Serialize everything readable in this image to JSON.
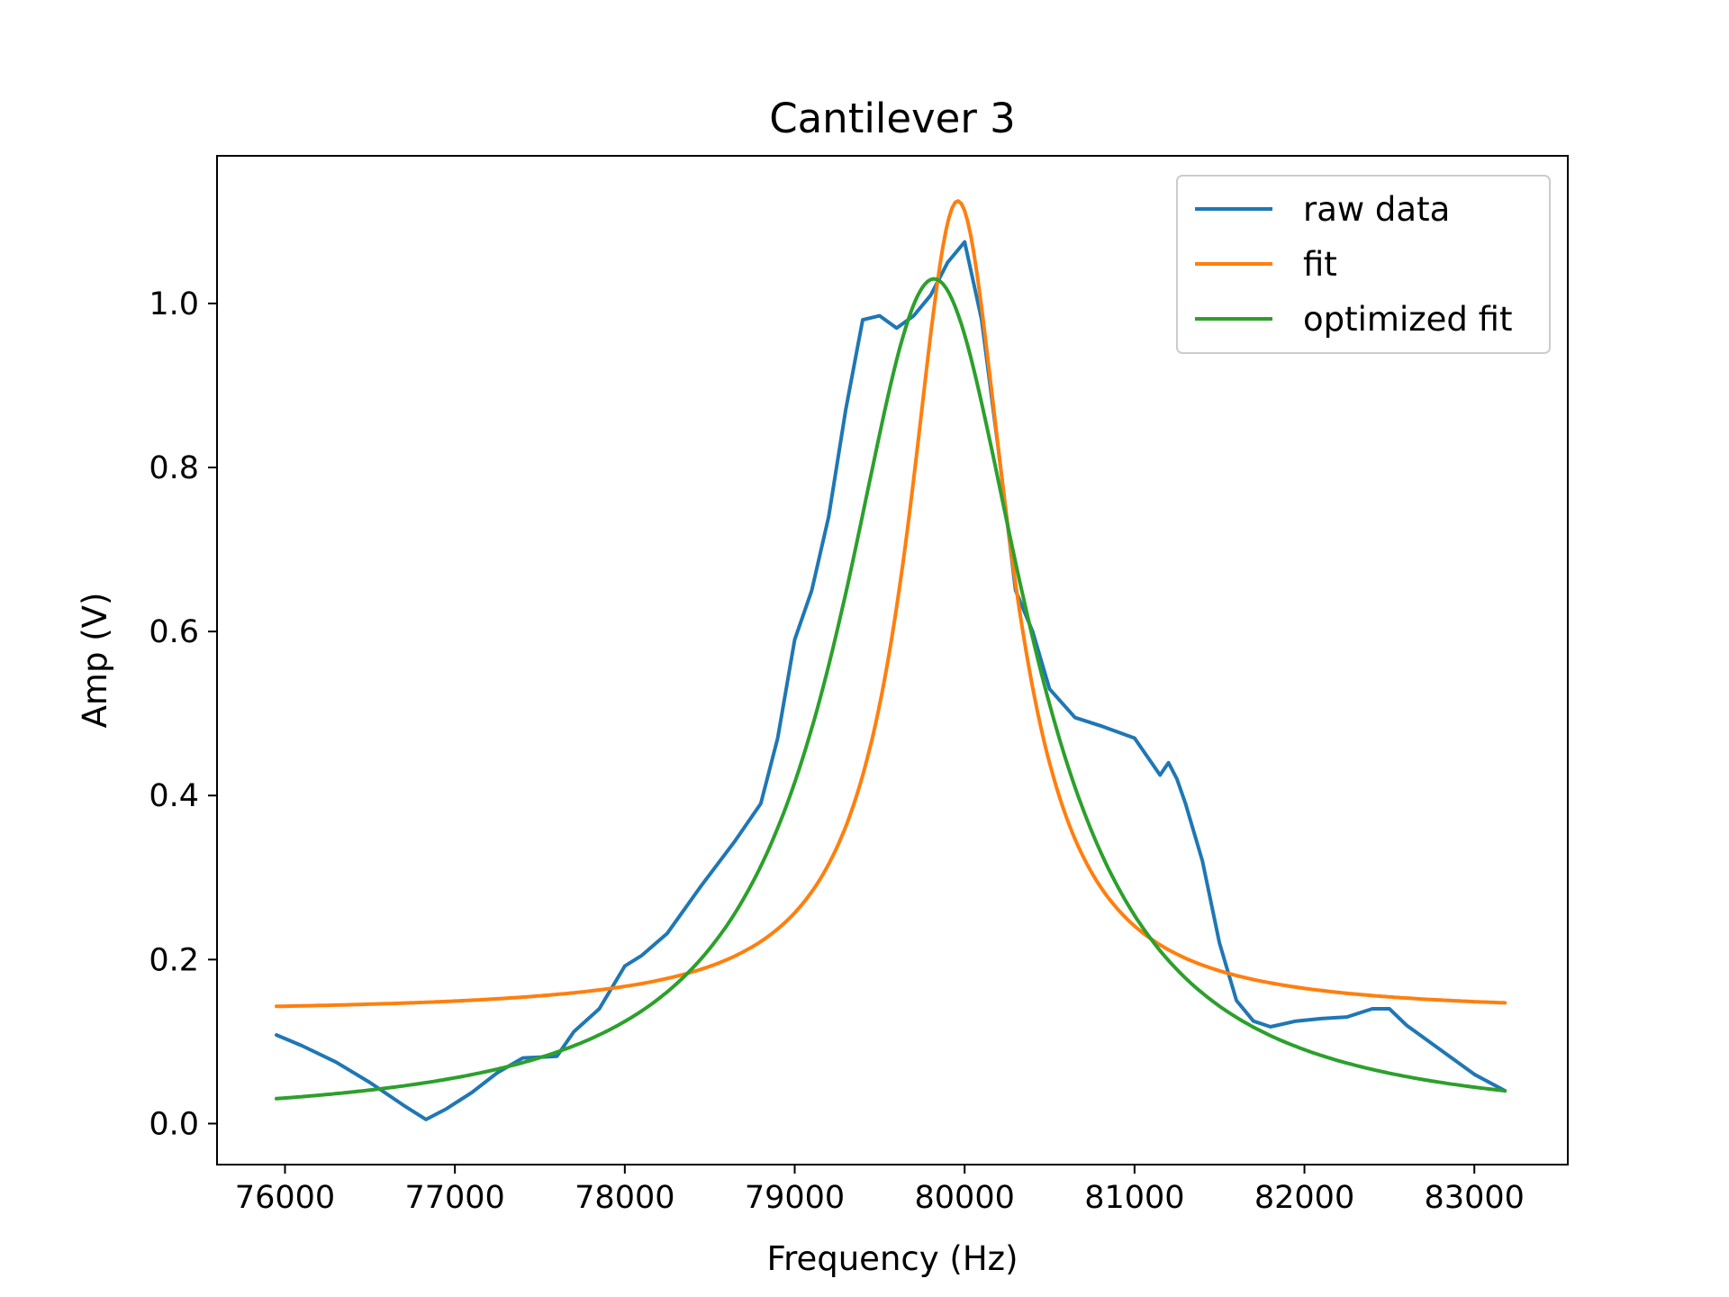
{
  "chart_data": {
    "type": "line",
    "title": "Cantilever 3",
    "xlabel": "Frequency (Hz)",
    "ylabel": "Amp (V)",
    "xlim": [
      75600,
      83550
    ],
    "ylim": [
      -0.05,
      1.18
    ],
    "xticks": [
      76000,
      77000,
      78000,
      79000,
      80000,
      81000,
      82000,
      83000
    ],
    "yticks": [
      0.0,
      0.2,
      0.4,
      0.6,
      0.8,
      1.0
    ],
    "ytick_labels": [
      "0.0",
      "0.2",
      "0.4",
      "0.6",
      "0.8",
      "1.0"
    ],
    "grid": false,
    "legend_position": "top-right",
    "series": [
      {
        "name": "raw data",
        "color": "#1f77b4",
        "x": [
          75950,
          76100,
          76300,
          76500,
          76700,
          76830,
          76950,
          77100,
          77250,
          77400,
          77500,
          77600,
          77700,
          77850,
          78000,
          78100,
          78250,
          78450,
          78650,
          78800,
          78900,
          79000,
          79100,
          79200,
          79300,
          79400,
          79500,
          79600,
          79700,
          79800,
          79900,
          80000,
          80100,
          80200,
          80300,
          80400,
          80500,
          80650,
          80800,
          81000,
          81100,
          81150,
          81200,
          81250,
          81300,
          81400,
          81500,
          81600,
          81700,
          81800,
          81950,
          82100,
          82250,
          82400,
          82500,
          82600,
          82800,
          83000,
          83180
        ],
        "y": [
          0.108,
          0.095,
          0.075,
          0.05,
          0.022,
          0.005,
          0.018,
          0.038,
          0.062,
          0.08,
          0.081,
          0.082,
          0.112,
          0.14,
          0.192,
          0.205,
          0.232,
          0.29,
          0.345,
          0.39,
          0.47,
          0.59,
          0.65,
          0.74,
          0.87,
          0.98,
          0.985,
          0.97,
          0.985,
          1.01,
          1.05,
          1.075,
          0.98,
          0.82,
          0.65,
          0.6,
          0.53,
          0.495,
          0.485,
          0.47,
          0.44,
          0.425,
          0.44,
          0.42,
          0.39,
          0.32,
          0.22,
          0.15,
          0.125,
          0.118,
          0.125,
          0.128,
          0.13,
          0.14,
          0.14,
          0.12,
          0.09,
          0.06,
          0.04
        ]
      },
      {
        "name": "fit",
        "color": "#ff7f0e",
        "model": {
          "kind": "lorentzian",
          "baseline": 0.135,
          "peak_amp": 0.99,
          "center": 79960,
          "fwhm": 720
        },
        "x_range": [
          75950,
          83180
        ]
      },
      {
        "name": "optimized fit",
        "color": "#2ca02c",
        "model": {
          "kind": "lorentzian",
          "baseline": 0.0,
          "peak_amp": 1.03,
          "center": 79820,
          "fwhm": 1350
        },
        "x_range": [
          75950,
          83180
        ]
      }
    ]
  }
}
